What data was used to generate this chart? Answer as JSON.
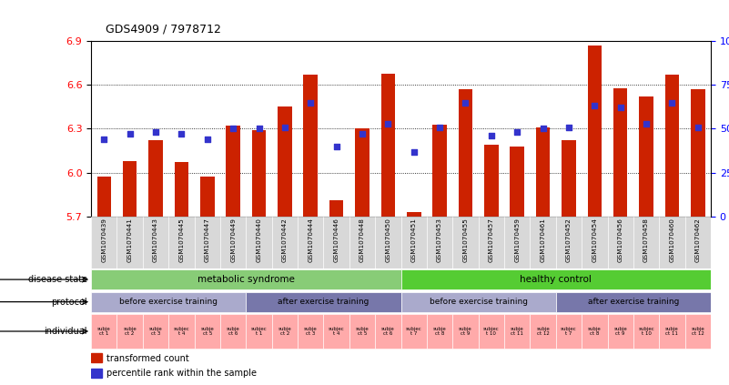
{
  "title": "GDS4909 / 7978712",
  "samples": [
    "GSM1070439",
    "GSM1070441",
    "GSM1070443",
    "GSM1070445",
    "GSM1070447",
    "GSM1070449",
    "GSM1070440",
    "GSM1070442",
    "GSM1070444",
    "GSM1070446",
    "GSM1070448",
    "GSM1070450",
    "GSM1070451",
    "GSM1070453",
    "GSM1070455",
    "GSM1070457",
    "GSM1070459",
    "GSM1070461",
    "GSM1070452",
    "GSM1070454",
    "GSM1070456",
    "GSM1070458",
    "GSM1070460",
    "GSM1070462"
  ],
  "bar_values": [
    5.97,
    6.08,
    6.22,
    6.07,
    5.97,
    6.32,
    6.29,
    6.45,
    6.67,
    5.81,
    6.3,
    6.68,
    5.73,
    6.33,
    6.57,
    6.19,
    6.18,
    6.31,
    6.22,
    6.87,
    6.58,
    6.52,
    6.67,
    6.57
  ],
  "dot_values": [
    44,
    47,
    48,
    47,
    44,
    50,
    50,
    51,
    65,
    40,
    47,
    53,
    37,
    51,
    65,
    46,
    48,
    50,
    51,
    63,
    62,
    53,
    65,
    51
  ],
  "ylim_left": [
    5.7,
    6.9
  ],
  "ylim_right": [
    0,
    100
  ],
  "yticks_left": [
    5.7,
    6.0,
    6.3,
    6.6,
    6.9
  ],
  "yticks_right": [
    0,
    25,
    50,
    75,
    100
  ],
  "bar_color": "#cc2200",
  "dot_color": "#3333cc",
  "disease_state_groups": [
    {
      "label": "metabolic syndrome",
      "start": 0,
      "end": 12,
      "color": "#88cc77"
    },
    {
      "label": "healthy control",
      "start": 12,
      "end": 24,
      "color": "#55cc33"
    }
  ],
  "protocol_groups": [
    {
      "label": "before exercise training",
      "start": 0,
      "end": 6,
      "color": "#aaaacc"
    },
    {
      "label": "after exercise training",
      "start": 6,
      "end": 12,
      "color": "#7777aa"
    },
    {
      "label": "before exercise training",
      "start": 12,
      "end": 18,
      "color": "#aaaacc"
    },
    {
      "label": "after exercise training",
      "start": 18,
      "end": 24,
      "color": "#7777aa"
    }
  ],
  "individual_labels": [
    "subje\nct 1",
    "subje\nct 2",
    "subje\nct 3",
    "subjec\nt 4",
    "subje\nct 5",
    "subje\nct 6",
    "subjec\nt 1",
    "subje\nct 2",
    "subje\nct 3",
    "subjec\nt 4",
    "subje\nct 5",
    "subje\nct 6",
    "subjec\nt 7",
    "subje\nct 8",
    "subje\nct 9",
    "subjec\nt 10",
    "subje\nct 11",
    "subje\nct 12",
    "subjec\nt 7",
    "subje\nct 8",
    "subje\nct 9",
    "subjec\nt 10",
    "subje\nct 11",
    "subje\nct 12"
  ],
  "individual_color": "#ffaaaa",
  "legend_items": [
    {
      "label": "transformed count",
      "color": "#cc2200"
    },
    {
      "label": "percentile rank within the sample",
      "color": "#3333cc"
    }
  ],
  "row_labels": [
    "disease state",
    "protocol",
    "individual"
  ]
}
